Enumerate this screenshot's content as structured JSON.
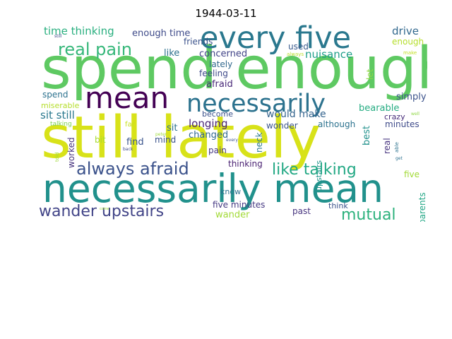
{
  "title": "1944-03-11",
  "words": [
    {
      "text": "spend enough",
      "color": "#5ec962"
    },
    {
      "text": "still lately",
      "color": "#d8e219"
    },
    {
      "text": "necessarily mean",
      "color": "#21918c"
    },
    {
      "text": "every five",
      "color": "#2a788e"
    },
    {
      "text": "mean",
      "color": "#440154"
    },
    {
      "text": "necessarily",
      "color": "#2c728e"
    },
    {
      "text": "real pain",
      "color": "#35b779"
    },
    {
      "text": "always afraid",
      "color": "#3b528b"
    },
    {
      "text": "wander upstairs",
      "color": "#414487"
    },
    {
      "text": "like talking",
      "color": "#22a884"
    },
    {
      "text": "mutual",
      "color": "#2db27d"
    },
    {
      "text": "time thinking",
      "color": "#29af7f"
    },
    {
      "text": "enough time",
      "color": "#3e4a89"
    },
    {
      "text": "drive",
      "color": "#31688e"
    },
    {
      "text": "used",
      "color": "#38598c"
    },
    {
      "text": "enough",
      "color": "#b5de2b"
    },
    {
      "text": "always",
      "color": "#b8de29"
    },
    {
      "text": "make",
      "color": "#c2df23"
    },
    {
      "text": "friends",
      "color": "#3b528b"
    },
    {
      "text": "like",
      "color": "#2d708e"
    },
    {
      "text": "concerned",
      "color": "#404387"
    },
    {
      "text": "nuisance",
      "color": "#1f9e89"
    },
    {
      "text": "lately",
      "color": "#31688e"
    },
    {
      "text": "let",
      "color": "#8fd744"
    },
    {
      "text": "feeling",
      "color": "#3e4989"
    },
    {
      "text": "afraid",
      "color": "#482878"
    },
    {
      "text": "simply",
      "color": "#3b528b"
    },
    {
      "text": "spend",
      "color": "#2c728e"
    },
    {
      "text": "miserable",
      "color": "#b5de2b"
    },
    {
      "text": "sit still",
      "color": "#2a788e"
    },
    {
      "text": "become",
      "color": "#3b528b"
    },
    {
      "text": "would make",
      "color": "#33638d"
    },
    {
      "text": "bearable",
      "color": "#25ac82"
    },
    {
      "text": "crazy",
      "color": "#472c7a"
    },
    {
      "text": "well",
      "color": "#8fd744"
    },
    {
      "text": "talking",
      "color": "#7ad151"
    },
    {
      "text": "far",
      "color": "#c8e020"
    },
    {
      "text": "longing",
      "color": "#482475"
    },
    {
      "text": "wonder",
      "color": "#3a548c"
    },
    {
      "text": "although",
      "color": "#2c728e"
    },
    {
      "text": "minutes",
      "color": "#3e4a89"
    },
    {
      "text": "sit",
      "color": "#2d708e"
    },
    {
      "text": "changed",
      "color": "#31688e"
    },
    {
      "text": "neck",
      "color": "#2a788e"
    },
    {
      "text": "bit",
      "color": "#a8db34"
    },
    {
      "text": "find",
      "color": "#3a548c"
    },
    {
      "text": "mind",
      "color": "#3b528b"
    },
    {
      "text": "peter",
      "color": "#9fda3a"
    },
    {
      "text": "every",
      "color": "#3b528b"
    },
    {
      "text": "best",
      "color": "#21918c"
    },
    {
      "text": "real",
      "color": "#46337f"
    },
    {
      "text": "able",
      "color": "#2c728e"
    },
    {
      "text": "worked",
      "color": "#46327e"
    },
    {
      "text": "back",
      "color": "#3e4a89"
    },
    {
      "text": "pain",
      "color": "#453781"
    },
    {
      "text": "get",
      "color": "#2d708e"
    },
    {
      "text": "told",
      "color": "#9fda3a"
    },
    {
      "text": "thinking",
      "color": "#481f70"
    },
    {
      "text": "upstairs",
      "color": "#1f968b"
    },
    {
      "text": "five",
      "color": "#a2da37"
    },
    {
      "text": "know",
      "color": "#2d708e"
    },
    {
      "text": "parents",
      "color": "#21a685"
    },
    {
      "text": "five minutes",
      "color": "#453882"
    },
    {
      "text": "wander",
      "color": "#a2da37"
    },
    {
      "text": "think",
      "color": "#3b528b"
    },
    {
      "text": "past",
      "color": "#46337f"
    },
    {
      "text": "still",
      "color": "#3e4a89"
    },
    {
      "text": "come",
      "color": "#9fda3a"
    }
  ]
}
